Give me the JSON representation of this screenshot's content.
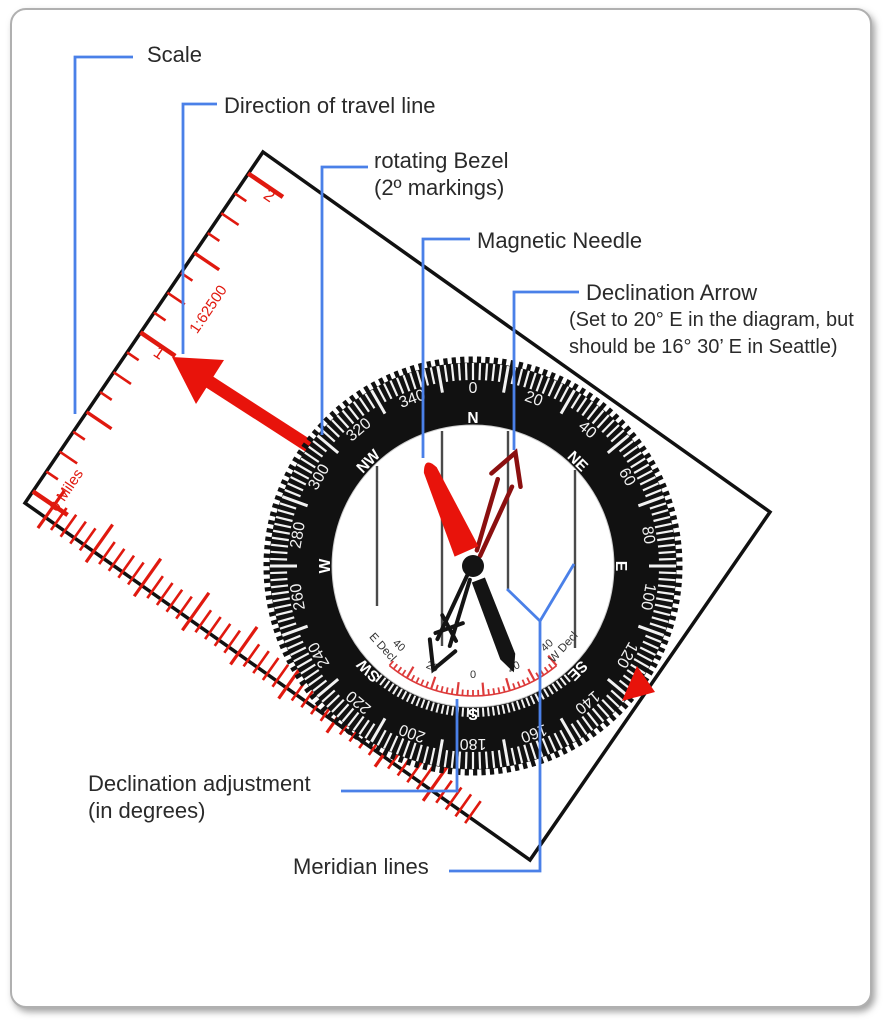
{
  "diagram": {
    "labels": {
      "scale": "Scale",
      "direction_of_travel": "Direction of travel line",
      "rotating_bezel_line1": "rotating Bezel",
      "rotating_bezel_line2": "(2º markings)",
      "magnetic_needle": "Magnetic Needle",
      "declination_arrow": "Declination Arrow",
      "declination_arrow_note1": "(Set to 20° E in the diagram, but",
      "declination_arrow_note2": "should be 16° 30’ E in Seattle)",
      "declination_adjustment_line1": "Declination adjustment",
      "declination_adjustment_line2": "(in degrees)",
      "meridian_lines": "Meridian lines"
    },
    "ruler": {
      "mark_2": "2",
      "mark_1": "1",
      "scale_ratio": "1:62500",
      "zero_label": "0 Miles"
    },
    "dial": {
      "numbers": [
        "0",
        "20",
        "40",
        "60",
        "80",
        "100",
        "120",
        "140",
        "160",
        "180",
        "200",
        "220",
        "240",
        "260",
        "280",
        "300",
        "320",
        "340"
      ],
      "cardinals": [
        "N",
        "NE",
        "E",
        "SE",
        "S",
        "SW",
        "W",
        "NW"
      ],
      "declination_scale": {
        "east_label": "E Decl",
        "west_label": "W Decl",
        "numbers": [
          "40",
          "20",
          "0",
          "20",
          "40"
        ]
      }
    },
    "colors": {
      "leader_blue": "#4a80e8",
      "compass_red": "#e8130b",
      "declination_maroon": "#8b1010",
      "bezel_black": "#111111",
      "ruler_red": "#e0190f",
      "label_text": "#2a2a2a"
    }
  }
}
